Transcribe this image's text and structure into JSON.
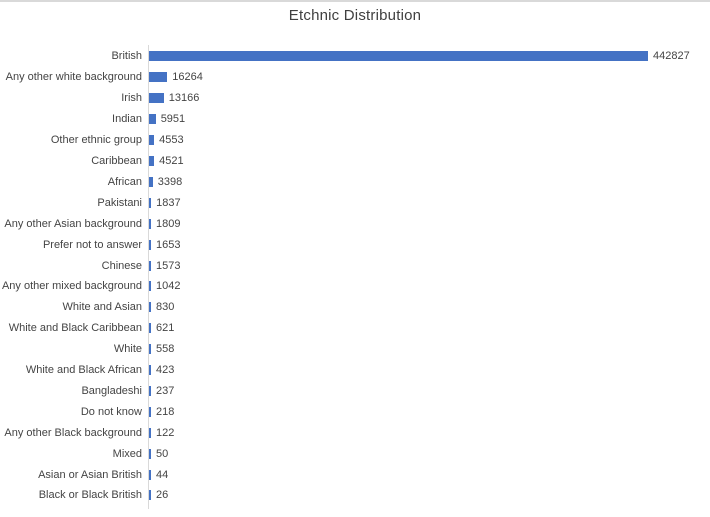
{
  "chart_data": {
    "type": "bar",
    "orientation": "horizontal",
    "title": "Etchnic Distribution",
    "xlabel": "",
    "ylabel": "",
    "legend": "none",
    "grid": false,
    "value_axis_visible": false,
    "data_labels": "outside-end",
    "categories": [
      "British",
      "Any other white background",
      "Irish",
      "Indian",
      "Other ethnic group",
      "Caribbean",
      "African",
      "Pakistani",
      "Any other Asian background",
      "Prefer not to answer",
      "Chinese",
      "Any other mixed background",
      "White and Asian",
      "White and Black Caribbean",
      "White",
      "White and Black African",
      "Bangladeshi",
      "Do not know",
      "Any other Black background",
      "Mixed",
      "Asian or Asian British",
      "Black or Black British"
    ],
    "values": [
      442827,
      16264,
      13166,
      5951,
      4553,
      4521,
      3398,
      1837,
      1809,
      1653,
      1573,
      1042,
      830,
      621,
      558,
      423,
      237,
      218,
      122,
      50,
      44,
      26
    ],
    "colors": {
      "bar": "#4472C4",
      "axis_line": "#D9D9D9",
      "top_border": "#D9D9D9",
      "title_text": "#404040",
      "label_text": "#444444"
    }
  }
}
